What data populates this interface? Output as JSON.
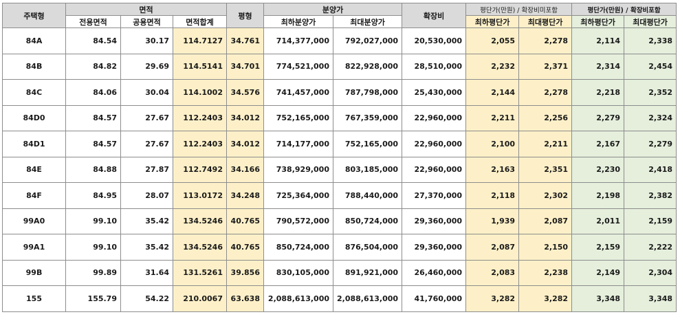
{
  "headers": {
    "type": "주택형",
    "area_group": "면적",
    "pyeong": "평형",
    "price_group": "분양가",
    "expansion": "확장비",
    "ppp_excl_group": "평단가(만원) / 확장비미포함",
    "ppp_incl_group": "평단가(만원) / 확장비포함",
    "exclusive_area": "전용면적",
    "common_area": "공용면적",
    "total_area": "면적합계",
    "min_price": "최하분양가",
    "max_price": "최대분양가",
    "min_ppp_excl": "최하평단가",
    "max_ppp_excl": "최대평단가",
    "min_ppp_incl": "최하평단가",
    "max_ppp_incl": "최대평단가"
  },
  "rows": [
    {
      "type": "84A",
      "exclusive": "84.54",
      "common": "30.17",
      "total": "114.7127",
      "pyeong": "34.761",
      "min_price": "714,377,000",
      "max_price": "792,027,000",
      "expansion": "20,530,000",
      "min_ppp_excl": "2,055",
      "max_ppp_excl": "2,278",
      "min_ppp_incl": "2,114",
      "max_ppp_incl": "2,338"
    },
    {
      "type": "84B",
      "exclusive": "84.82",
      "common": "29.69",
      "total": "114.5141",
      "pyeong": "34.701",
      "min_price": "774,521,000",
      "max_price": "822,928,000",
      "expansion": "28,510,000",
      "min_ppp_excl": "2,232",
      "max_ppp_excl": "2,371",
      "min_ppp_incl": "2,314",
      "max_ppp_incl": "2,454"
    },
    {
      "type": "84C",
      "exclusive": "84.06",
      "common": "30.04",
      "total": "114.1002",
      "pyeong": "34.576",
      "min_price": "741,457,000",
      "max_price": "787,798,000",
      "expansion": "25,430,000",
      "min_ppp_excl": "2,144",
      "max_ppp_excl": "2,278",
      "min_ppp_incl": "2,218",
      "max_ppp_incl": "2,352"
    },
    {
      "type": "84D0",
      "exclusive": "84.57",
      "common": "27.67",
      "total": "112.2403",
      "pyeong": "34.012",
      "min_price": "752,165,000",
      "max_price": "767,359,000",
      "expansion": "22,960,000",
      "min_ppp_excl": "2,211",
      "max_ppp_excl": "2,256",
      "min_ppp_incl": "2,279",
      "max_ppp_incl": "2,324"
    },
    {
      "type": "84D1",
      "exclusive": "84.57",
      "common": "27.67",
      "total": "112.2403",
      "pyeong": "34.012",
      "min_price": "714,177,000",
      "max_price": "752,165,000",
      "expansion": "22,960,000",
      "min_ppp_excl": "2,100",
      "max_ppp_excl": "2,211",
      "min_ppp_incl": "2,167",
      "max_ppp_incl": "2,279"
    },
    {
      "type": "84E",
      "exclusive": "84.88",
      "common": "27.87",
      "total": "112.7492",
      "pyeong": "34.166",
      "min_price": "738,929,000",
      "max_price": "803,185,000",
      "expansion": "22,960,000",
      "min_ppp_excl": "2,163",
      "max_ppp_excl": "2,351",
      "min_ppp_incl": "2,230",
      "max_ppp_incl": "2,418"
    },
    {
      "type": "84F",
      "exclusive": "84.95",
      "common": "28.07",
      "total": "113.0172",
      "pyeong": "34.248",
      "min_price": "725,364,000",
      "max_price": "788,440,000",
      "expansion": "27,370,000",
      "min_ppp_excl": "2,118",
      "max_ppp_excl": "2,302",
      "min_ppp_incl": "2,198",
      "max_ppp_incl": "2,382"
    },
    {
      "type": "99A0",
      "exclusive": "99.10",
      "common": "35.42",
      "total": "134.5246",
      "pyeong": "40.765",
      "min_price": "790,572,000",
      "max_price": "850,724,000",
      "expansion": "29,360,000",
      "min_ppp_excl": "1,939",
      "max_ppp_excl": "2,087",
      "min_ppp_incl": "2,011",
      "max_ppp_incl": "2,159"
    },
    {
      "type": "99A1",
      "exclusive": "99.10",
      "common": "35.42",
      "total": "134.5246",
      "pyeong": "40.765",
      "min_price": "850,724,000",
      "max_price": "876,504,000",
      "expansion": "29,360,000",
      "min_ppp_excl": "2,087",
      "max_ppp_excl": "2,150",
      "min_ppp_incl": "2,159",
      "max_ppp_incl": "2,222"
    },
    {
      "type": "99B",
      "exclusive": "99.89",
      "common": "31.64",
      "total": "131.5261",
      "pyeong": "39.856",
      "min_price": "830,105,000",
      "max_price": "891,921,000",
      "expansion": "26,460,000",
      "min_ppp_excl": "2,083",
      "max_ppp_excl": "2,238",
      "min_ppp_incl": "2,149",
      "max_ppp_incl": "2,304"
    },
    {
      "type": "155",
      "exclusive": "155.79",
      "common": "54.22",
      "total": "210.0067",
      "pyeong": "63.638",
      "min_price": "2,088,613,000",
      "max_price": "2,088,613,000",
      "expansion": "41,760,000",
      "min_ppp_excl": "3,282",
      "max_ppp_excl": "3,282",
      "min_ppp_incl": "3,348",
      "max_ppp_incl": "3,348"
    }
  ]
}
